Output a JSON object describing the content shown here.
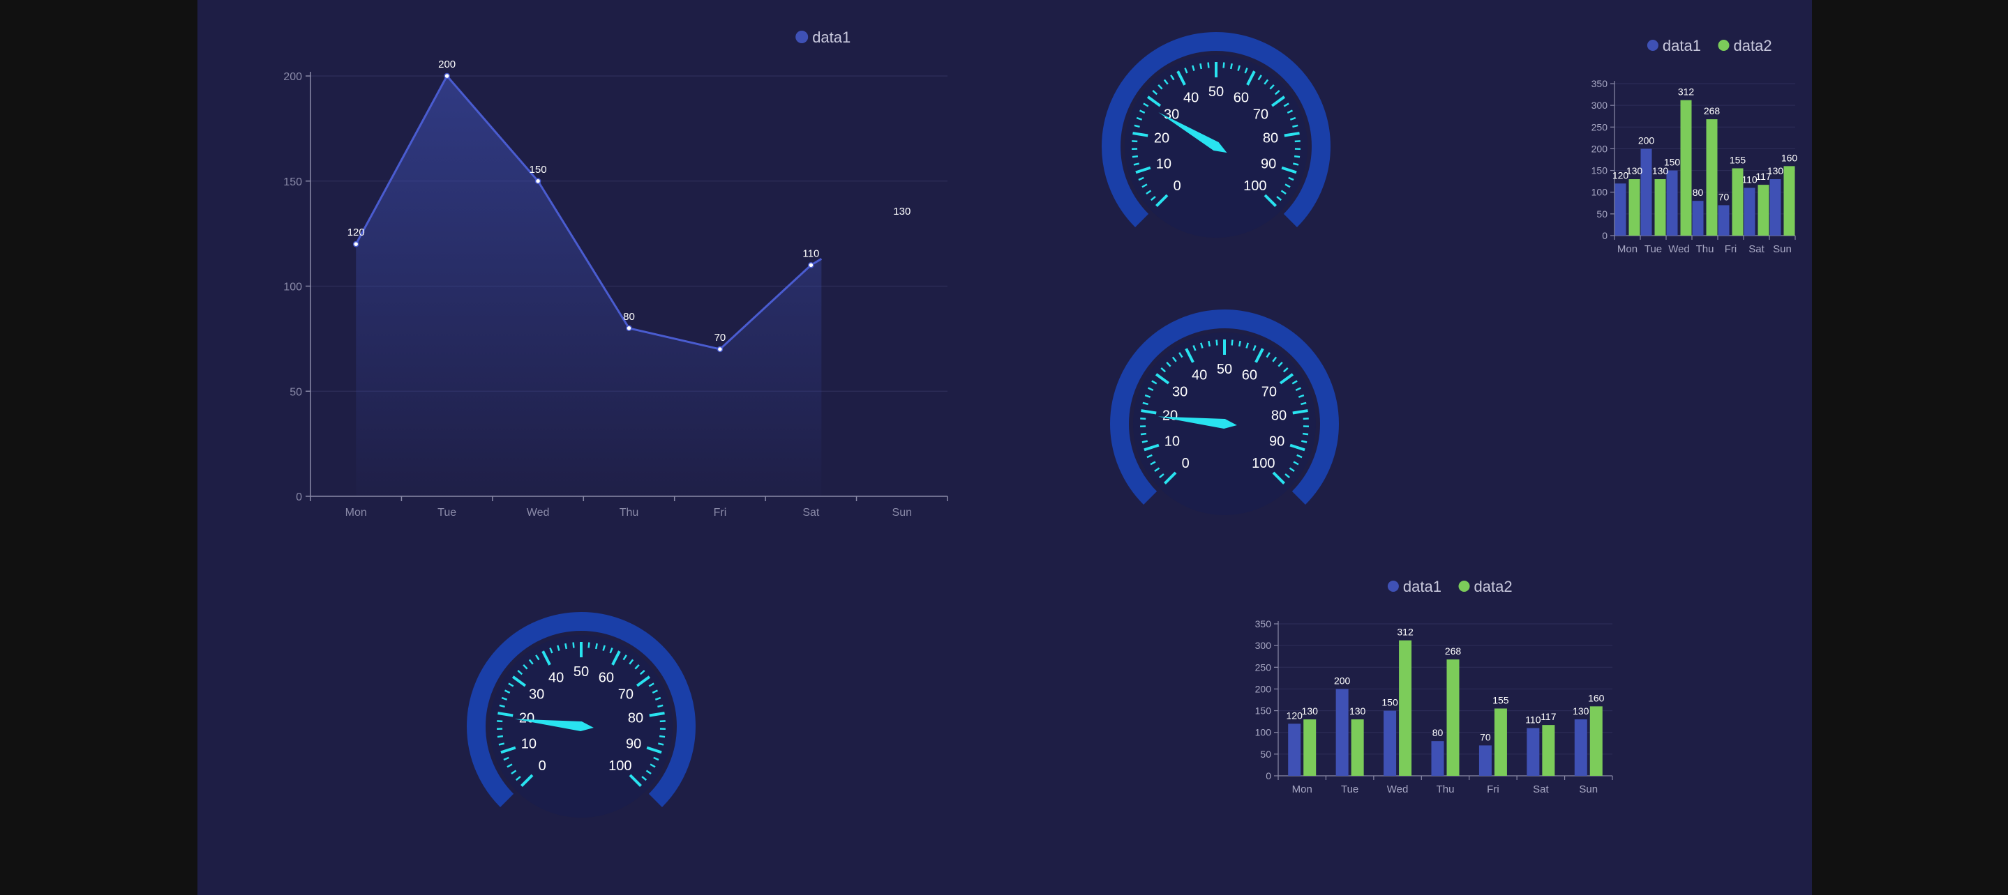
{
  "colors": {
    "background": "#1e1e45",
    "outer": "#111111",
    "series1": "#3f51b5",
    "series2": "#7ccc5a",
    "gauge_ring": "#1a3fa8",
    "gauge_face": "#1a1d4a",
    "gauge_tick": "#29e3f0",
    "axis": "#8a8aa8",
    "grid": "#2e2e5a"
  },
  "icons": {
    "legend_marker": "circle"
  },
  "chart_data": [
    {
      "id": "line_main",
      "type": "area",
      "legend": [
        "data1"
      ],
      "legend_placement": "top-center",
      "categories": [
        "Mon",
        "Tue",
        "Wed",
        "Thu",
        "Fri",
        "Sat",
        "Sun"
      ],
      "series": [
        {
          "name": "data1",
          "values": [
            120,
            200,
            150,
            80,
            70,
            110,
            130
          ]
        }
      ],
      "ylim": [
        0,
        200
      ],
      "yticks": [
        "0",
        "50",
        "100",
        "150",
        "200"
      ],
      "grid": true,
      "data_labels": [
        "120",
        "200",
        "150",
        "80",
        "70",
        "110",
        "130"
      ]
    },
    {
      "id": "gauge_top",
      "type": "gauge",
      "min": 0,
      "max": 100,
      "value": 28,
      "scale_labels": [
        "0",
        "10",
        "20",
        "30",
        "40",
        "50",
        "60",
        "70",
        "80",
        "90",
        "100"
      ]
    },
    {
      "id": "gauge_middle",
      "type": "gauge",
      "min": 0,
      "max": 100,
      "value": 19,
      "scale_labels": [
        "0",
        "10",
        "20",
        "30",
        "40",
        "50",
        "60",
        "70",
        "80",
        "90",
        "100"
      ]
    },
    {
      "id": "gauge_bottom",
      "type": "gauge",
      "min": 0,
      "max": 100,
      "value": 19,
      "scale_labels": [
        "0",
        "10",
        "20",
        "30",
        "40",
        "50",
        "60",
        "70",
        "80",
        "90",
        "100"
      ]
    },
    {
      "id": "bar_top",
      "type": "bar",
      "legend": [
        "data1",
        "data2"
      ],
      "legend_placement": "top-center",
      "categories": [
        "Mon",
        "Tue",
        "Wed",
        "Thu",
        "Fri",
        "Sat",
        "Sun"
      ],
      "series": [
        {
          "name": "data1",
          "values": [
            120,
            200,
            150,
            80,
            70,
            110,
            130
          ]
        },
        {
          "name": "data2",
          "values": [
            130,
            130,
            312,
            268,
            155,
            117,
            160
          ]
        }
      ],
      "ylim": [
        0,
        350
      ],
      "yticks": [
        "0",
        "50",
        "100",
        "150",
        "200",
        "250",
        "300",
        "350"
      ],
      "grid": true
    },
    {
      "id": "bar_bottom",
      "type": "bar",
      "legend": [
        "data1",
        "data2"
      ],
      "legend_placement": "top-center",
      "categories": [
        "Mon",
        "Tue",
        "Wed",
        "Thu",
        "Fri",
        "Sat",
        "Sun"
      ],
      "series": [
        {
          "name": "data1",
          "values": [
            120,
            200,
            150,
            80,
            70,
            110,
            130
          ]
        },
        {
          "name": "data2",
          "values": [
            130,
            130,
            312,
            268,
            155,
            117,
            160
          ]
        }
      ],
      "ylim": [
        0,
        350
      ],
      "yticks": [
        "0",
        "50",
        "100",
        "150",
        "200",
        "250",
        "300",
        "350"
      ],
      "grid": true
    }
  ]
}
